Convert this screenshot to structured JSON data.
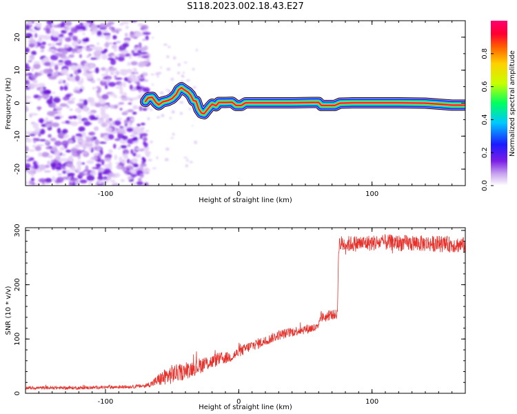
{
  "chart_data": [
    {
      "type": "heatmap",
      "title": "S118.2023.002.18.43.E27",
      "xlabel": "Height of straight line (km)",
      "ylabel": "Frequency (Hz)",
      "xlim": [
        -160,
        170
      ],
      "ylim": [
        -25,
        25
      ],
      "x_ticks": [
        -100,
        0,
        100
      ],
      "y_ticks": [
        -20,
        -10,
        0,
        10,
        20
      ],
      "colorbar": {
        "label": "Normalized spectral amplitude",
        "range": [
          0,
          1
        ],
        "ticks": [
          "0.0",
          "0.2",
          "0.4",
          "0.6",
          "0.8"
        ],
        "colors": [
          "#ffffff",
          "#c9a6ef",
          "#7a1ee6",
          "#1b1bff",
          "#00c8ff",
          "#00ff60",
          "#c8ff00",
          "#ffd000",
          "#ff6000",
          "#ff0030",
          "#ff0070"
        ]
      },
      "noise_region": {
        "x_range": [
          -160,
          -70
        ],
        "freq_range": [
          -25,
          25
        ]
      },
      "trace_hz": [
        [
          -70,
          0.5
        ],
        [
          -68,
          1.6
        ],
        [
          -65,
          1.8
        ],
        [
          -62,
          0.2
        ],
        [
          -60,
          -0.5
        ],
        [
          -57,
          0.4
        ],
        [
          -53,
          0.8
        ],
        [
          -50,
          1.4
        ],
        [
          -47,
          2.6
        ],
        [
          -45,
          4.1
        ],
        [
          -43,
          4.7
        ],
        [
          -41,
          4.1
        ],
        [
          -38,
          3.3
        ],
        [
          -36,
          2.4
        ],
        [
          -34,
          0.8
        ],
        [
          -32,
          0.6
        ],
        [
          -30,
          -1.8
        ],
        [
          -28,
          -3.0
        ],
        [
          -26,
          -3.2
        ],
        [
          -24,
          -2.2
        ],
        [
          -22,
          -1.2
        ],
        [
          -20,
          -0.3
        ],
        [
          -17,
          -0.8
        ],
        [
          -15,
          0.2
        ],
        [
          -10,
          0.2
        ],
        [
          -5,
          0.3
        ],
        [
          -2,
          -0.7
        ],
        [
          2,
          -0.7
        ],
        [
          5,
          0.1
        ],
        [
          20,
          0.1
        ],
        [
          40,
          0.1
        ],
        [
          55,
          0.2
        ],
        [
          60,
          0.2
        ],
        [
          62,
          -0.7
        ],
        [
          72,
          -0.7
        ],
        [
          76,
          0.0
        ],
        [
          85,
          0.1
        ],
        [
          100,
          0.1
        ],
        [
          120,
          0.1
        ],
        [
          140,
          0.0
        ],
        [
          150,
          -0.3
        ],
        [
          160,
          -0.6
        ],
        [
          170,
          -0.6
        ]
      ],
      "trace_amplitude_core": 0.9
    },
    {
      "type": "line",
      "title": "",
      "xlabel": "Height of straight line (km)",
      "ylabel": "SNR (10 * v/v)",
      "xlim": [
        -160,
        170
      ],
      "ylim": [
        0,
        305
      ],
      "x_ticks": [
        -100,
        0,
        100
      ],
      "y_ticks": [
        0,
        100,
        200,
        300
      ],
      "series": [
        {
          "color": "#e8302a",
          "x": [
            -160,
            -140,
            -120,
            -100,
            -80,
            -70,
            -65,
            -60,
            -55,
            -50,
            -45,
            -40,
            -35,
            -30,
            -25,
            -20,
            -15,
            -10,
            -5,
            0,
            5,
            10,
            15,
            20,
            25,
            30,
            35,
            40,
            45,
            50,
            55,
            60,
            61,
            65,
            70,
            74,
            75,
            80,
            90,
            100,
            110,
            120,
            130,
            140,
            150,
            160,
            170
          ],
          "values": [
            10,
            10,
            10,
            11,
            12,
            14,
            18,
            25,
            30,
            35,
            38,
            40,
            46,
            50,
            55,
            58,
            63,
            65,
            68,
            75,
            82,
            88,
            92,
            96,
            102,
            107,
            110,
            113,
            116,
            118,
            120,
            120,
            140,
            140,
            145,
            145,
            275,
            275,
            276,
            277,
            278,
            277,
            276,
            276,
            275,
            274,
            273
          ],
          "noise_amplitude": [
            3,
            3,
            3,
            3,
            3,
            4,
            6,
            12,
            16,
            18,
            16,
            15,
            15,
            15,
            14,
            13,
            12,
            11,
            10,
            10,
            10,
            10,
            10,
            9,
            9,
            9,
            9,
            9,
            9,
            9,
            9,
            9,
            9,
            9,
            9,
            9,
            16,
            15,
            15,
            15,
            15,
            15,
            15,
            15,
            15,
            15,
            15
          ]
        }
      ]
    }
  ]
}
